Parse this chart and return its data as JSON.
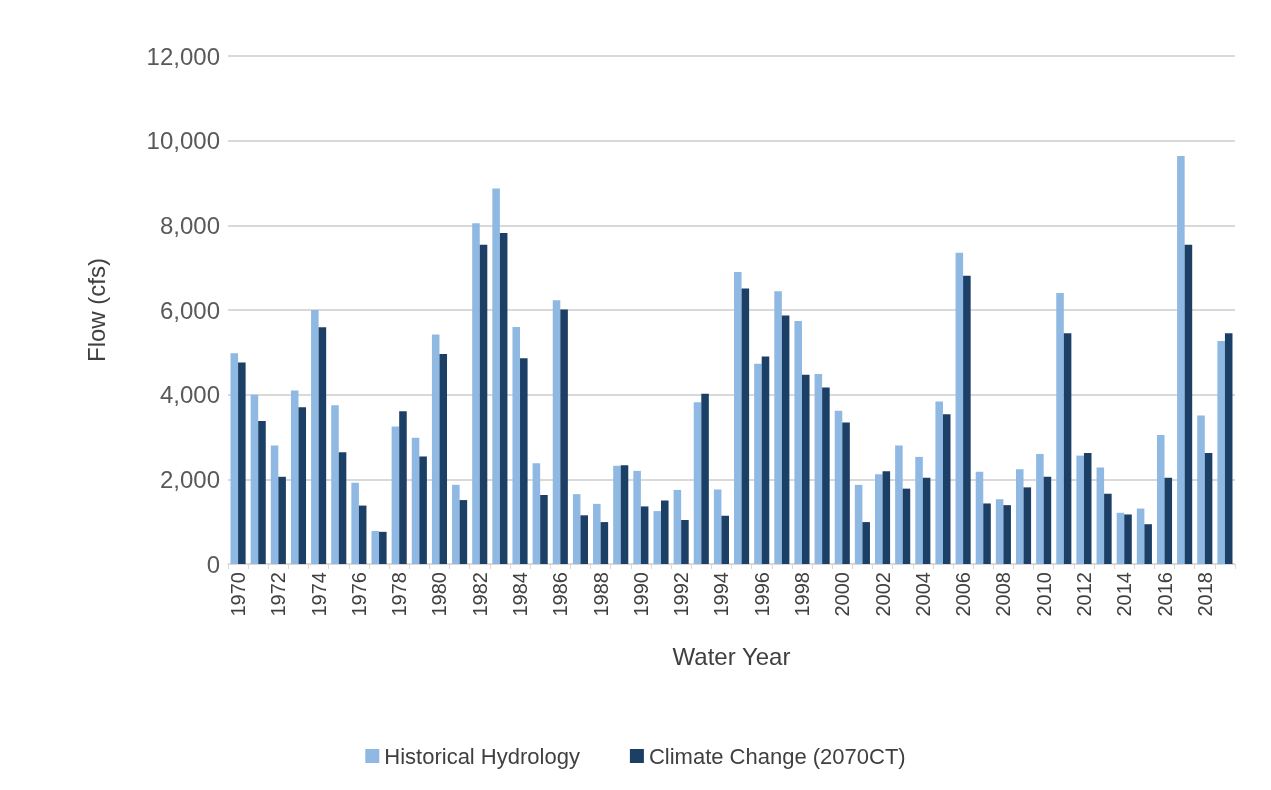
{
  "chart_data": {
    "type": "bar",
    "xlabel": "Water Year",
    "ylabel": "Flow (cfs)",
    "categories": [
      "1970",
      null,
      "1972",
      null,
      "1974",
      null,
      "1976",
      null,
      "1978",
      null,
      "1980",
      null,
      "1982",
      null,
      "1984",
      null,
      "1986",
      null,
      "1988",
      null,
      "1990",
      null,
      "1992",
      null,
      "1994",
      null,
      "1996",
      null,
      "1998",
      null,
      "2000",
      null,
      "2002",
      null,
      "2004",
      null,
      "2006",
      null,
      "2008",
      null,
      "2010",
      null,
      "2012",
      null,
      "2014",
      null,
      "2016",
      null,
      "2018",
      null
    ],
    "series": [
      {
        "name": "Historical Hydrology",
        "color": "#8fb9e3",
        "values": [
          4980,
          4000,
          2800,
          4100,
          6000,
          3750,
          1920,
          780,
          3250,
          2980,
          5420,
          1870,
          8050,
          8870,
          5600,
          2380,
          6230,
          1650,
          1420,
          2320,
          2200,
          1250,
          1750,
          3820,
          1760,
          6900,
          4730,
          6440,
          5740,
          4490,
          3620,
          1870,
          2120,
          2800,
          2530,
          3840,
          7350,
          2180,
          1530,
          2240,
          2600,
          6400,
          2560,
          2280,
          1210,
          1310,
          3050,
          9640,
          3510,
          5270
        ]
      },
      {
        "name": "Climate Change (2070CT)",
        "color": "#1c3f66",
        "values": [
          4760,
          3380,
          2060,
          3700,
          5590,
          2640,
          1380,
          760,
          3610,
          2540,
          4960,
          1510,
          7540,
          7820,
          4860,
          1630,
          6010,
          1150,
          990,
          2330,
          1360,
          1500,
          1040,
          4020,
          1140,
          6510,
          4900,
          5870,
          4470,
          4170,
          3340,
          990,
          2190,
          1780,
          2040,
          3540,
          6810,
          1430,
          1390,
          1810,
          2060,
          5450,
          2620,
          1660,
          1170,
          940,
          2040,
          7540,
          2620,
          5450
        ]
      }
    ],
    "ylim": [
      0,
      12000
    ],
    "yticks": [
      0,
      {
        "value": 2000,
        "label": "2,000"
      },
      {
        "value": 4000,
        "label": "4,000"
      },
      {
        "value": 6000,
        "label": "6,000"
      },
      {
        "value": 8000,
        "label": "8,000"
      },
      {
        "value": 10000,
        "label": "10,000"
      },
      {
        "value": 12000,
        "label": "12,000"
      }
    ],
    "grid": "y",
    "legend": "bottom"
  }
}
